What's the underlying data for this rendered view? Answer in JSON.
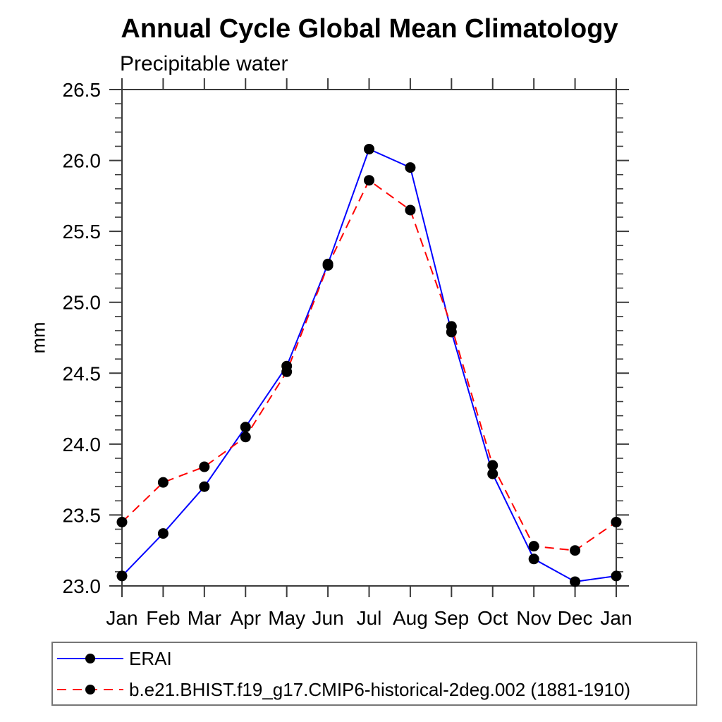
{
  "page": {
    "background": "#ffffff"
  },
  "chart_data": {
    "type": "line",
    "title": "Annual Cycle Global Mean Climatology",
    "subtitle": "Precipitable water",
    "ylabel": "mm",
    "xlabel": "",
    "categories": [
      "Jan",
      "Feb",
      "Mar",
      "Apr",
      "May",
      "Jun",
      "Jul",
      "Aug",
      "Sep",
      "Oct",
      "Nov",
      "Dec",
      "Jan"
    ],
    "ylim": [
      23.0,
      26.5
    ],
    "y_major_step": 0.5,
    "y_minor_step": 0.1,
    "y_tick_labels": [
      "23.0",
      "23.5",
      "24.0",
      "24.5",
      "25.0",
      "25.5",
      "26.0",
      "26.5"
    ],
    "grid": false,
    "axis_color": "#3b3b3b",
    "text_color": "#000000",
    "marker_color": "#000000",
    "legend": {
      "position": "bottom-left",
      "border_color": "#767676"
    },
    "series": [
      {
        "name": "ERAI",
        "color": "#0000ff",
        "line_style": "solid",
        "marker": "circle",
        "values": [
          23.07,
          23.37,
          23.7,
          24.12,
          24.55,
          25.27,
          26.08,
          25.95,
          24.79,
          23.79,
          23.19,
          23.03,
          23.07
        ]
      },
      {
        "name": "b.e21.BHIST.f19_g17.CMIP6-historical-2deg.002 (1881-1910)",
        "color": "#ff0000",
        "line_style": "dashed",
        "marker": "circle",
        "values": [
          23.45,
          23.73,
          23.84,
          24.05,
          24.51,
          25.26,
          25.86,
          25.65,
          24.83,
          23.85,
          23.28,
          23.25,
          23.45
        ]
      }
    ]
  }
}
